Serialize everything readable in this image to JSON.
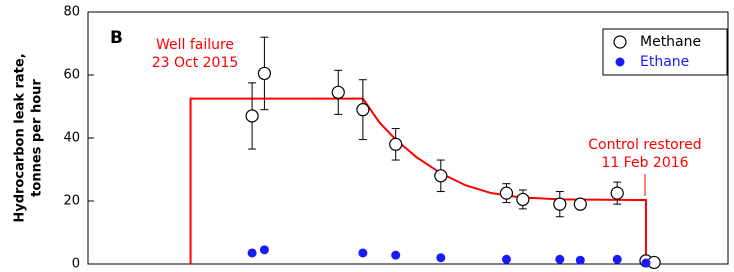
{
  "chart_data": {
    "type": "scatter",
    "panel_label": "B",
    "ylabel": [
      "Hydrocarbon leak rate,",
      "tonnes per hour"
    ],
    "annotations": [
      "Well failure",
      "23 Oct 2015",
      "Control restored",
      "11 Feb 2016"
    ],
    "xlim": [
      -25,
      131
    ],
    "ylim": [
      0,
      80
    ],
    "yticks": [
      0,
      20,
      40,
      60,
      80
    ],
    "legend": "upper right",
    "series": [
      {
        "name": "Methane",
        "color": "#000000",
        "marker": "open-circle",
        "x": [
          15,
          18,
          36,
          42,
          50,
          61,
          77,
          81,
          90,
          95,
          104,
          111,
          113
        ],
        "values": [
          47,
          60.5,
          54.5,
          49,
          38,
          28,
          22.5,
          20.5,
          19,
          19,
          22.5,
          1,
          0.5
        ],
        "errors": [
          10.5,
          11.5,
          7,
          9.5,
          5,
          5,
          3,
          3,
          4,
          1.5,
          3.5,
          null,
          null
        ]
      },
      {
        "name": "Ethane",
        "color": "#1a1aff",
        "marker": "filled-circle",
        "x": [
          15,
          18,
          42,
          50,
          61,
          77,
          90,
          95,
          104,
          111
        ],
        "values": [
          3.5,
          4.5,
          3.5,
          2.8,
          2,
          1.5,
          1.5,
          1.2,
          1.5,
          0.3
        ]
      },
      {
        "type": "line",
        "color": "#ff0000",
        "x": [
          0,
          0,
          42,
          46,
          50,
          55,
          61,
          67,
          73,
          80,
          90,
          111,
          111
        ],
        "values": [
          0,
          52.5,
          52.5,
          45,
          39.5,
          34,
          28.8,
          25,
          22.6,
          21.2,
          20.5,
          20.3,
          0
        ]
      }
    ]
  }
}
